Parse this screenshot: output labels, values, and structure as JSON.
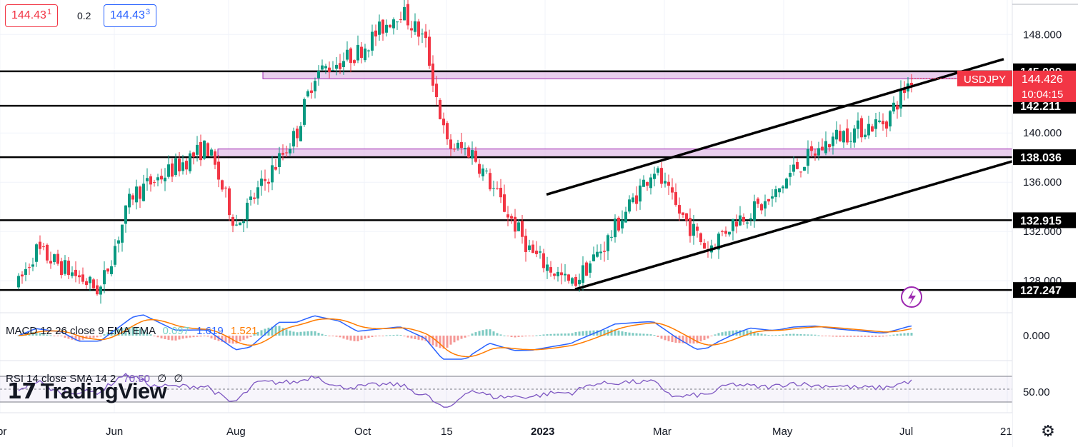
{
  "quote": {
    "bid": "144.431",
    "spread": "0.2",
    "ask": "144.433"
  },
  "symbol": "USDJPY",
  "last_price": "144.426",
  "countdown": "10:04:15",
  "colors": {
    "up": "#089981",
    "down": "#f23645",
    "macd": "#2962ff",
    "signal": "#ff7b00",
    "rsi": "#7e57c2",
    "zone_fill": "#e1bee7",
    "zone_border": "#9c27b0",
    "lines": "#000000"
  },
  "indicators": {
    "macd": {
      "title": "MACD 12 26 close 9 EMA EMA",
      "hist": "0.097",
      "macd": "1.619",
      "signal": "1.521"
    },
    "rsi": {
      "title": "RSI 14 close SMA 14 2",
      "value": "70.50",
      "extra1": "∅",
      "extra2": "∅"
    }
  },
  "watermark": "TradingView",
  "chart_data": {
    "type": "candlestick",
    "symbol": "USDJPY",
    "ylim": [
      125.4,
      150.8
    ],
    "y_ticks": [
      "148.000",
      "140.000",
      "136.000",
      "132.000",
      "128.000"
    ],
    "x_ticks": [
      "Apr",
      "Jun",
      "Aug",
      "Oct",
      "15",
      "2023",
      "Mar",
      "May",
      "Jul",
      "21"
    ],
    "horizontal_levels": [
      145.009,
      142.211,
      138.036,
      132.915,
      127.247
    ],
    "zones": [
      {
        "from": 144.4,
        "to": 145.0
      },
      {
        "from": 138.0,
        "to": 138.7
      }
    ],
    "trendlines": [
      {
        "from": [
          "Jan 2023",
          135.0
        ],
        "to": [
          "Aug 2023",
          146.0
        ]
      },
      {
        "from": [
          "Jan 2023",
          127.3
        ],
        "to": [
          "Aug 2023",
          137.7
        ]
      }
    ],
    "price_path": [
      [
        "Apr",
        124.7
      ],
      [
        "May",
        130.5
      ],
      [
        "May",
        127.2
      ],
      [
        "Jun",
        135.0
      ],
      [
        "Jul",
        137.0
      ],
      [
        "Jul",
        138.9
      ],
      [
        "Aug",
        132.5
      ],
      [
        "Sep",
        140.0
      ],
      [
        "Sep",
        144.8
      ],
      [
        "Oct",
        146.5
      ],
      [
        "Oct",
        150.0
      ],
      [
        "Nov",
        147.5
      ],
      [
        "Nov",
        139.0
      ],
      [
        "Dec",
        138.5
      ],
      [
        "Dec",
        134.5
      ],
      [
        "Jan",
        130.2
      ],
      [
        "Jan",
        127.6
      ],
      [
        "Feb",
        130.8
      ],
      [
        "Mar",
        137.2
      ],
      [
        "Mar",
        134.0
      ],
      [
        "Mar",
        130.6
      ],
      [
        "Apr",
        133.0
      ],
      [
        "May",
        134.5
      ],
      [
        "May",
        137.0
      ],
      [
        "Jun",
        139.7
      ],
      [
        "Jun",
        141.0
      ],
      [
        "Jul",
        144.4
      ]
    ],
    "macd_ticks": [
      "0.000"
    ],
    "rsi_ticks": [
      "50.00"
    ],
    "rsi_levels": [
      70,
      50,
      30
    ]
  }
}
